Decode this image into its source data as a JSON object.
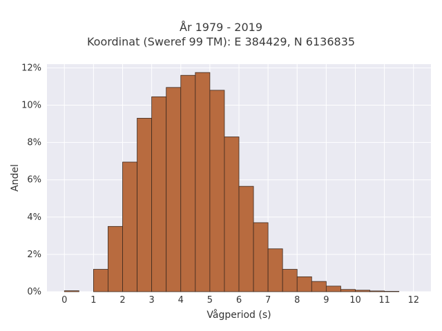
{
  "chart_data": {
    "type": "bar",
    "title_line1": "År 1979 - 2019",
    "title_line2": "Koordinat (Sweref 99 TM): E 384429, N 6136835",
    "xlabel": "Vågperiod (s)",
    "ylabel": "Andel",
    "bin_width": 0.5,
    "bins_start": [
      0,
      0.5,
      1,
      1.5,
      2,
      2.5,
      3,
      3.5,
      4,
      4.5,
      5,
      5.5,
      6,
      6.5,
      7,
      7.5,
      8,
      8.5,
      9,
      9.5,
      10,
      10.5,
      11,
      11.5
    ],
    "values": [
      0.05,
      0,
      1.2,
      3.5,
      6.95,
      9.3,
      10.45,
      10.95,
      11.6,
      11.75,
      10.8,
      8.3,
      5.65,
      3.7,
      2.3,
      1.2,
      0.8,
      0.55,
      0.3,
      0.12,
      0.08,
      0.04,
      0.02,
      0
    ],
    "x_ticks": [
      "0",
      "1",
      "2",
      "3",
      "4",
      "5",
      "6",
      "7",
      "8",
      "9",
      "10",
      "11",
      "12"
    ],
    "y_ticks": [
      "0%",
      "2%",
      "4%",
      "6%",
      "8%",
      "10%",
      "12%"
    ],
    "xlim": [
      -0.6,
      12.6
    ],
    "ylim": [
      0,
      12.2
    ],
    "bar_color": "#b86b3f",
    "grid": true,
    "background_color": "#eaeaf2"
  }
}
